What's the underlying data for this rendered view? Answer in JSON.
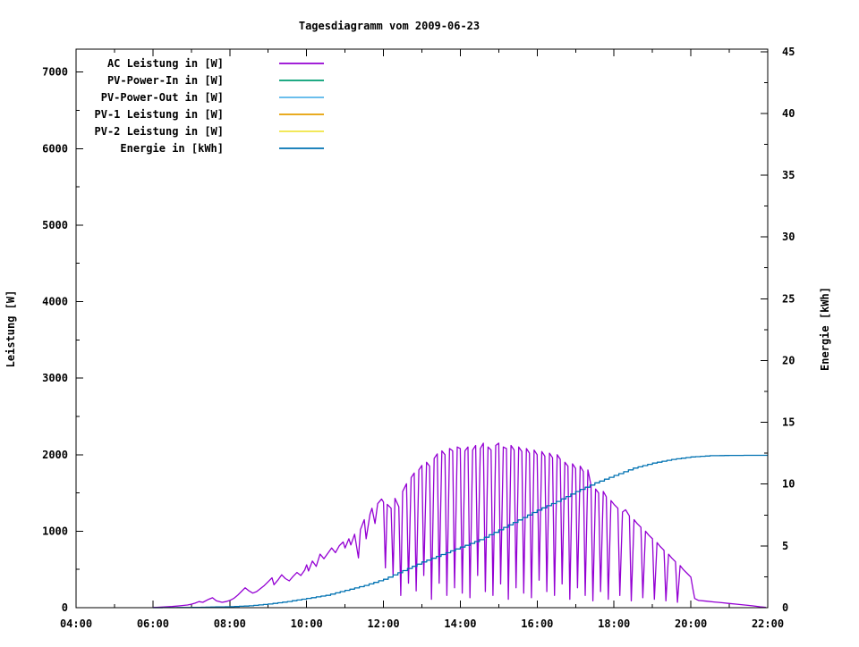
{
  "page": {
    "background": "#ffffff"
  },
  "chart_data": {
    "type": "line",
    "title": "Tagesdiagramm vom 2009-06-23",
    "ylabel": "Leistung [W]",
    "y2label": "Energie [kWh]",
    "xlabel": "",
    "grid": false,
    "legend_position": "inside top-left",
    "xlim_hours": [
      4,
      22
    ],
    "ylim": [
      0,
      7300
    ],
    "y2lim": [
      0,
      45.2
    ],
    "x_tick_labels": [
      "04:00",
      "06:00",
      "08:00",
      "10:00",
      "12:00",
      "14:00",
      "16:00",
      "18:00",
      "20:00",
      "22:00"
    ],
    "x_tick_hours": [
      4,
      6,
      8,
      10,
      12,
      14,
      16,
      18,
      20,
      22
    ],
    "x_minor_tick_hours": [
      5,
      7,
      9,
      11,
      13,
      15,
      17,
      19,
      21
    ],
    "y_tick_labels": [
      "0",
      "1000",
      "2000",
      "3000",
      "4000",
      "5000",
      "6000",
      "7000"
    ],
    "y_tick_values": [
      0,
      1000,
      2000,
      3000,
      4000,
      5000,
      6000,
      7000
    ],
    "y_minor_step": 500,
    "y2_tick_labels": [
      "0",
      "5",
      "10",
      "15",
      "20",
      "25",
      "30",
      "35",
      "40",
      "45"
    ],
    "y2_tick_values": [
      0,
      5,
      10,
      15,
      20,
      25,
      30,
      35,
      40,
      45
    ],
    "y2_minor_step": 2.5,
    "legend": [
      {
        "label": "AC Leistung in [W]",
        "color": "#9400d3"
      },
      {
        "label": "PV-Power-In in [W]",
        "color": "#009e73"
      },
      {
        "label": "PV-Power-Out in [W]",
        "color": "#56b4e9"
      },
      {
        "label": "PV-1 Leistung in [W]",
        "color": "#e69f00"
      },
      {
        "label": "PV-2 Leistung in [W]",
        "color": "#f0e442"
      },
      {
        "label": "Energie in [kWh]",
        "color": "#0072b2"
      }
    ],
    "series": [
      {
        "name": "AC Leistung in [W]",
        "axis": "y1",
        "color": "#9400d3",
        "style": "line",
        "points": [
          [
            6.0,
            2
          ],
          [
            6.1,
            5
          ],
          [
            6.3,
            10
          ],
          [
            6.5,
            15
          ],
          [
            6.7,
            25
          ],
          [
            6.9,
            35
          ],
          [
            7.0,
            45
          ],
          [
            7.1,
            60
          ],
          [
            7.2,
            80
          ],
          [
            7.3,
            70
          ],
          [
            7.45,
            110
          ],
          [
            7.55,
            130
          ],
          [
            7.65,
            90
          ],
          [
            7.8,
            70
          ],
          [
            7.9,
            80
          ],
          [
            8.0,
            95
          ],
          [
            8.1,
            120
          ],
          [
            8.2,
            160
          ],
          [
            8.3,
            210
          ],
          [
            8.4,
            260
          ],
          [
            8.5,
            220
          ],
          [
            8.6,
            190
          ],
          [
            8.7,
            210
          ],
          [
            8.8,
            250
          ],
          [
            8.9,
            290
          ],
          [
            9.0,
            340
          ],
          [
            9.1,
            390
          ],
          [
            9.15,
            300
          ],
          [
            9.25,
            360
          ],
          [
            9.35,
            430
          ],
          [
            9.45,
            380
          ],
          [
            9.55,
            350
          ],
          [
            9.65,
            410
          ],
          [
            9.75,
            460
          ],
          [
            9.85,
            420
          ],
          [
            9.95,
            490
          ],
          [
            10.0,
            560
          ],
          [
            10.05,
            480
          ],
          [
            10.15,
            610
          ],
          [
            10.25,
            540
          ],
          [
            10.35,
            700
          ],
          [
            10.45,
            640
          ],
          [
            10.55,
            710
          ],
          [
            10.65,
            780
          ],
          [
            10.75,
            720
          ],
          [
            10.85,
            810
          ],
          [
            10.95,
            860
          ],
          [
            11.0,
            780
          ],
          [
            11.1,
            900
          ],
          [
            11.15,
            820
          ],
          [
            11.25,
            960
          ],
          [
            11.35,
            650
          ],
          [
            11.4,
            1020
          ],
          [
            11.5,
            1150
          ],
          [
            11.55,
            900
          ],
          [
            11.65,
            1220
          ],
          [
            11.7,
            1300
          ],
          [
            11.78,
            1100
          ],
          [
            11.85,
            1360
          ],
          [
            11.95,
            1420
          ],
          [
            12.0,
            1380
          ],
          [
            12.05,
            520
          ],
          [
            12.1,
            1350
          ],
          [
            12.2,
            1300
          ],
          [
            12.25,
            420
          ],
          [
            12.3,
            1430
          ],
          [
            12.4,
            1320
          ],
          [
            12.45,
            160
          ],
          [
            12.5,
            1520
          ],
          [
            12.6,
            1620
          ],
          [
            12.65,
            320
          ],
          [
            12.72,
            1700
          ],
          [
            12.8,
            1760
          ],
          [
            12.85,
            220
          ],
          [
            12.92,
            1800
          ],
          [
            13.0,
            1860
          ],
          [
            13.05,
            420
          ],
          [
            13.12,
            1900
          ],
          [
            13.2,
            1850
          ],
          [
            13.25,
            110
          ],
          [
            13.32,
            1950
          ],
          [
            13.4,
            2010
          ],
          [
            13.45,
            320
          ],
          [
            13.52,
            2050
          ],
          [
            13.6,
            2000
          ],
          [
            13.65,
            160
          ],
          [
            13.72,
            2080
          ],
          [
            13.8,
            2050
          ],
          [
            13.85,
            260
          ],
          [
            13.92,
            2100
          ],
          [
            14.0,
            2080
          ],
          [
            14.05,
            190
          ],
          [
            14.12,
            2050
          ],
          [
            14.2,
            2100
          ],
          [
            14.25,
            130
          ],
          [
            14.32,
            2060
          ],
          [
            14.4,
            2120
          ],
          [
            14.45,
            420
          ],
          [
            14.52,
            2080
          ],
          [
            14.6,
            2150
          ],
          [
            14.65,
            210
          ],
          [
            14.72,
            2100
          ],
          [
            14.8,
            2060
          ],
          [
            14.85,
            160
          ],
          [
            14.92,
            2120
          ],
          [
            15.0,
            2150
          ],
          [
            15.05,
            310
          ],
          [
            15.12,
            2100
          ],
          [
            15.2,
            2080
          ],
          [
            15.25,
            110
          ],
          [
            15.32,
            2120
          ],
          [
            15.4,
            2060
          ],
          [
            15.45,
            260
          ],
          [
            15.52,
            2100
          ],
          [
            15.6,
            2040
          ],
          [
            15.65,
            190
          ],
          [
            15.72,
            2080
          ],
          [
            15.8,
            2020
          ],
          [
            15.85,
            130
          ],
          [
            15.92,
            2060
          ],
          [
            16.0,
            2000
          ],
          [
            16.05,
            360
          ],
          [
            16.12,
            2040
          ],
          [
            16.2,
            1980
          ],
          [
            16.25,
            210
          ],
          [
            16.32,
            2020
          ],
          [
            16.4,
            1960
          ],
          [
            16.45,
            160
          ],
          [
            16.52,
            2000
          ],
          [
            16.6,
            1940
          ],
          [
            16.65,
            310
          ],
          [
            16.72,
            1900
          ],
          [
            16.8,
            1850
          ],
          [
            16.85,
            110
          ],
          [
            16.92,
            1880
          ],
          [
            17.0,
            1820
          ],
          [
            17.05,
            260
          ],
          [
            17.12,
            1850
          ],
          [
            17.2,
            1780
          ],
          [
            17.25,
            160
          ],
          [
            17.32,
            1800
          ],
          [
            17.4,
            1600
          ],
          [
            17.45,
            90
          ],
          [
            17.52,
            1550
          ],
          [
            17.6,
            1500
          ],
          [
            17.65,
            210
          ],
          [
            17.72,
            1520
          ],
          [
            17.8,
            1450
          ],
          [
            17.85,
            110
          ],
          [
            17.92,
            1400
          ],
          [
            18.0,
            1350
          ],
          [
            18.1,
            1300
          ],
          [
            18.15,
            160
          ],
          [
            18.22,
            1250
          ],
          [
            18.3,
            1280
          ],
          [
            18.4,
            1200
          ],
          [
            18.45,
            90
          ],
          [
            18.52,
            1150
          ],
          [
            18.6,
            1100
          ],
          [
            18.7,
            1050
          ],
          [
            18.75,
            130
          ],
          [
            18.82,
            1000
          ],
          [
            18.9,
            950
          ],
          [
            19.0,
            900
          ],
          [
            19.05,
            110
          ],
          [
            19.12,
            850
          ],
          [
            19.2,
            800
          ],
          [
            19.3,
            750
          ],
          [
            19.35,
            90
          ],
          [
            19.42,
            700
          ],
          [
            19.5,
            650
          ],
          [
            19.6,
            600
          ],
          [
            19.65,
            70
          ],
          [
            19.72,
            550
          ],
          [
            19.8,
            500
          ],
          [
            19.9,
            450
          ],
          [
            20.0,
            400
          ],
          [
            20.05,
            250
          ],
          [
            20.1,
            120
          ],
          [
            20.2,
            95
          ],
          [
            20.4,
            85
          ],
          [
            20.6,
            75
          ],
          [
            20.8,
            65
          ],
          [
            21.0,
            55
          ],
          [
            21.2,
            45
          ],
          [
            21.4,
            35
          ],
          [
            21.6,
            25
          ],
          [
            21.8,
            12
          ],
          [
            21.95,
            5
          ]
        ]
      },
      {
        "name": "PV-Power-In in [W]",
        "axis": "y1",
        "color": "#009e73",
        "style": "line",
        "points": []
      },
      {
        "name": "PV-Power-Out in [W]",
        "axis": "y1",
        "color": "#56b4e9",
        "style": "line",
        "points": []
      },
      {
        "name": "PV-1 Leistung in [W]",
        "axis": "y1",
        "color": "#e69f00",
        "style": "line",
        "points": []
      },
      {
        "name": "PV-2 Leistung in [W]",
        "axis": "y1",
        "color": "#f0e442",
        "style": "line",
        "points": []
      },
      {
        "name": "Energie in [kWh]",
        "axis": "y2",
        "color": "#0072b2",
        "style": "steps",
        "points": [
          [
            6.0,
            0
          ],
          [
            7.0,
            0.02
          ],
          [
            8.0,
            0.08
          ],
          [
            8.5,
            0.15
          ],
          [
            9.0,
            0.3
          ],
          [
            9.5,
            0.5
          ],
          [
            10.0,
            0.75
          ],
          [
            10.5,
            1.0
          ],
          [
            11.0,
            1.4
          ],
          [
            11.5,
            1.8
          ],
          [
            12.0,
            2.3
          ],
          [
            12.5,
            3.0
          ],
          [
            13.0,
            3.7
          ],
          [
            13.5,
            4.3
          ],
          [
            14.0,
            4.9
          ],
          [
            14.5,
            5.5
          ],
          [
            15.0,
            6.3
          ],
          [
            15.5,
            7.1
          ],
          [
            16.0,
            7.9
          ],
          [
            16.5,
            8.6
          ],
          [
            17.0,
            9.4
          ],
          [
            17.5,
            10.1
          ],
          [
            18.0,
            10.7
          ],
          [
            18.5,
            11.3
          ],
          [
            19.0,
            11.7
          ],
          [
            19.5,
            12.0
          ],
          [
            20.0,
            12.2
          ],
          [
            20.5,
            12.3
          ],
          [
            21.0,
            12.32
          ],
          [
            21.5,
            12.33
          ],
          [
            22.0,
            12.33
          ]
        ]
      }
    ]
  }
}
